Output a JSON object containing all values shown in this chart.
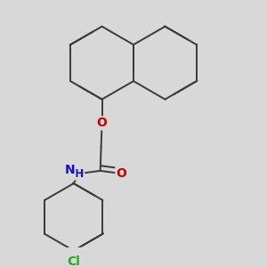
{
  "background_color": "#d8d8d8",
  "bond_color": "#3a3a3a",
  "bond_width": 1.4,
  "atom_labels": {
    "O": {
      "color": "#cc0000"
    },
    "N": {
      "color": "#1010cc"
    },
    "Cl": {
      "color": "#22aa22"
    }
  },
  "figsize": [
    3.0,
    3.0
  ],
  "dpi": 100
}
